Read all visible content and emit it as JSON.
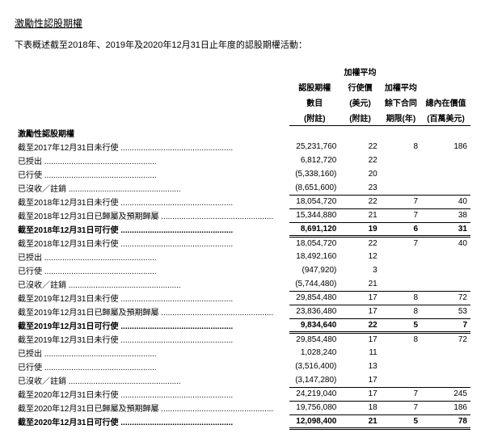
{
  "title": "激勵性認股期權",
  "intro": "下表概述截至2018年、2019年及2020年12月31日止年度的認股期權活動：",
  "columns": {
    "c1a": "認股期權",
    "c1b": "數目",
    "c1c": "(附註)",
    "c2a": "加權平均",
    "c2b": "行使價",
    "c2c": "(美元)",
    "c2d": "(附註)",
    "c3a": "加權平均",
    "c3b": "餘下合同",
    "c3c": "期限(年)",
    "c4a": "總內在價值",
    "c4b": "(百萬美元)"
  },
  "subheader": "激勵性認股期權",
  "rows": [
    {
      "label": "截至2017年12月31日未行使",
      "c1": "25,231,760",
      "c2": "22",
      "c3": "8",
      "c4": "186"
    },
    {
      "label": "已授出",
      "c1": "6,812,720",
      "c2": "22",
      "c3": "",
      "c4": ""
    },
    {
      "label": "已行使",
      "c1": "(5,338,160)",
      "c2": "20",
      "c3": "",
      "c4": ""
    },
    {
      "label": "已沒收／註銷",
      "c1": "(8,651,600)",
      "c2": "23",
      "c3": "",
      "c4": ""
    },
    {
      "label": "截至2018年12月31日未行使",
      "c1": "18,054,720",
      "c2": "22",
      "c3": "7",
      "c4": "40",
      "top": true
    },
    {
      "label": "截至2018年12月31日已歸屬及預期歸屬",
      "c1": "15,344,880",
      "c2": "21",
      "c3": "7",
      "c4": "38",
      "top": true
    },
    {
      "label": "截至2018年12月31日可行使",
      "c1": "8,691,120",
      "c2": "19",
      "c3": "6",
      "c4": "31",
      "bold": true,
      "top": true,
      "dbl": true
    },
    {
      "label": "截至2018年12月31日未行使",
      "c1": "18,054,720",
      "c2": "22",
      "c3": "7",
      "c4": "40"
    },
    {
      "label": "已授出",
      "c1": "18,492,160",
      "c2": "12",
      "c3": "",
      "c4": ""
    },
    {
      "label": "已行使",
      "c1": "(947,920)",
      "c2": "3",
      "c3": "",
      "c4": ""
    },
    {
      "label": "已沒收／註銷",
      "c1": "(5,744,480)",
      "c2": "21",
      "c3": "",
      "c4": ""
    },
    {
      "label": "截至2019年12月31日未行使",
      "c1": "29,854,480",
      "c2": "17",
      "c3": "8",
      "c4": "72",
      "top": true
    },
    {
      "label": "截至2019年12月31日已歸屬及預期歸屬",
      "c1": "23,836,480",
      "c2": "17",
      "c3": "8",
      "c4": "53",
      "top": true
    },
    {
      "label": "截至2019年12月31日可行使",
      "c1": "9,834,640",
      "c2": "22",
      "c3": "5",
      "c4": "7",
      "bold": true,
      "top": true,
      "dbl": true
    },
    {
      "label": "截至2019年12月31日未行使",
      "c1": "29,854,480",
      "c2": "17",
      "c3": "8",
      "c4": "72"
    },
    {
      "label": "已授出",
      "c1": "1,028,240",
      "c2": "11",
      "c3": "",
      "c4": ""
    },
    {
      "label": "已行使",
      "c1": "(3,516,400)",
      "c2": "13",
      "c3": "",
      "c4": ""
    },
    {
      "label": "已沒收／註銷",
      "c1": "(3,147,280)",
      "c2": "17",
      "c3": "",
      "c4": ""
    },
    {
      "label": "截至2020年12月31日未行使",
      "c1": "24,219,040",
      "c2": "17",
      "c3": "7",
      "c4": "245",
      "top": true
    },
    {
      "label": "截至2020年12月31日已歸屬及預期歸屬",
      "c1": "19,756,080",
      "c2": "18",
      "c3": "7",
      "c4": "186",
      "top": true
    },
    {
      "label": "截至2020年12月31日可行使",
      "c1": "12,098,400",
      "c2": "21",
      "c3": "5",
      "c4": "78",
      "bold": true,
      "top": true,
      "dbl": true
    }
  ]
}
